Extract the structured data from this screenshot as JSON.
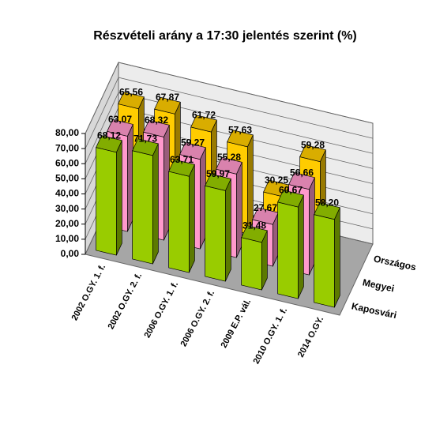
{
  "chart_data": {
    "type": "bar3d",
    "title": "Részvételi arány a 17:30 jelentés szerint (%)",
    "categories": [
      "2002 O.GY. 1. f.",
      "2002 O.GY. 2. f.",
      "2006 O.GY. 1. f.",
      "2006 O.GY. 2. f.",
      "2009 E.P. vál.",
      "2010 O.GY. 1. f.",
      "2014 O.GY."
    ],
    "series": [
      {
        "name": "Kaposvári",
        "color": "#99cc00",
        "values": [
          68.12,
          71.73,
          63.71,
          59.97,
          31.48,
          60.67,
          58.2
        ],
        "value_labels": [
          "68,12",
          "71,73",
          "63,71",
          "59,97",
          "31,48",
          "60,67",
          "58,20"
        ]
      },
      {
        "name": "Megyei",
        "color": "#ff99cc",
        "values": [
          63.07,
          68.32,
          59.27,
          55.28,
          27.67,
          56.66,
          null
        ],
        "value_labels": [
          "63,07",
          "68,32",
          "59,27",
          "55,28",
          "27,67",
          "56,66",
          null
        ]
      },
      {
        "name": "Országos",
        "color": "#ffcc00",
        "values": [
          65.56,
          67.87,
          61.72,
          57.63,
          30.25,
          59.28,
          null
        ],
        "value_labels": [
          "65,56",
          "67,87",
          "61,72",
          "57,63",
          "30,25",
          "59,28",
          null
        ]
      }
    ],
    "ylim": [
      0,
      80
    ],
    "yticks": [
      {
        "value": 0,
        "label": "0,00"
      },
      {
        "value": 10,
        "label": "10,00"
      },
      {
        "value": 20,
        "label": "20,00"
      },
      {
        "value": 30,
        "label": "30,00"
      },
      {
        "value": 40,
        "label": "40,00"
      },
      {
        "value": 50,
        "label": "50,00"
      },
      {
        "value": 60,
        "label": "60,00"
      },
      {
        "value": 70,
        "label": "70,00"
      },
      {
        "value": 80,
        "label": "80,00"
      }
    ],
    "grid": true
  }
}
